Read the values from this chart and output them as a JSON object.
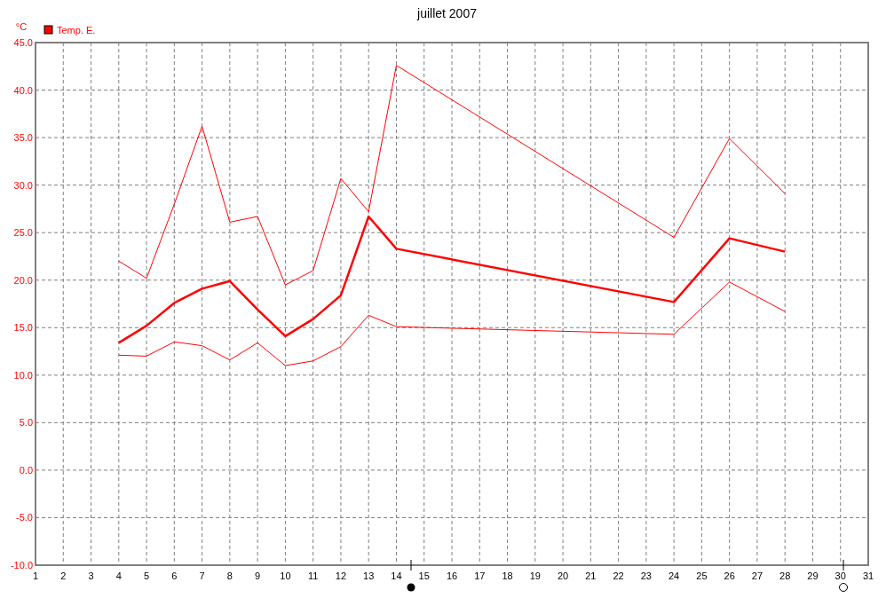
{
  "chart_data": {
    "type": "line",
    "title": "juillet 2007",
    "ylabel": "°C",
    "x": [
      4,
      5,
      6,
      7,
      8,
      9,
      10,
      11,
      12,
      13,
      14,
      24,
      26,
      28
    ],
    "series": [
      {
        "name": "Temp. E.",
        "color": "#ff0000",
        "values": [
          13.4,
          15.2,
          17.6,
          19.1,
          19.9,
          16.9,
          14.1,
          15.9,
          18.4,
          26.7,
          23.3,
          17.7,
          24.4,
          23.0
        ]
      },
      {
        "color": "#ff0000",
        "values": [
          22.0,
          20.2,
          28.0,
          36.2,
          26.1,
          26.7,
          19.5,
          21.0,
          30.7,
          27.2,
          42.6,
          24.5,
          34.9,
          29.1
        ]
      },
      {
        "color": "#ff0000",
        "values": [
          12.1,
          12.0,
          13.5,
          13.1,
          11.6,
          13.4,
          11.0,
          11.5,
          13.0,
          16.3,
          15.1,
          14.3,
          19.8,
          16.7
        ]
      }
    ],
    "xlim": [
      1,
      31
    ],
    "xticks": [
      1,
      2,
      3,
      4,
      5,
      6,
      7,
      8,
      9,
      10,
      11,
      12,
      13,
      14,
      15,
      16,
      17,
      18,
      19,
      20,
      21,
      22,
      23,
      24,
      25,
      26,
      27,
      28,
      29,
      30,
      31
    ],
    "ylim": [
      -10,
      45
    ],
    "yticks": [
      {
        "value": -10,
        "label": "-10.0"
      },
      {
        "value": -5,
        "label": "-5.0"
      },
      {
        "value": 0,
        "label": "0.0"
      },
      {
        "value": 5,
        "label": "5.0"
      },
      {
        "value": 10,
        "label": "10.0"
      },
      {
        "value": 15,
        "label": "15.0"
      },
      {
        "value": 20,
        "label": "20.0"
      },
      {
        "value": 25,
        "label": "25.0"
      },
      {
        "value": 30,
        "label": "30.0"
      },
      {
        "value": 35,
        "label": "35.0"
      },
      {
        "value": 40,
        "label": "40.0"
      },
      {
        "value": 45,
        "label": "45.0"
      }
    ],
    "grid": true,
    "legend": "top left",
    "marker": "none",
    "line_style": "solid"
  }
}
